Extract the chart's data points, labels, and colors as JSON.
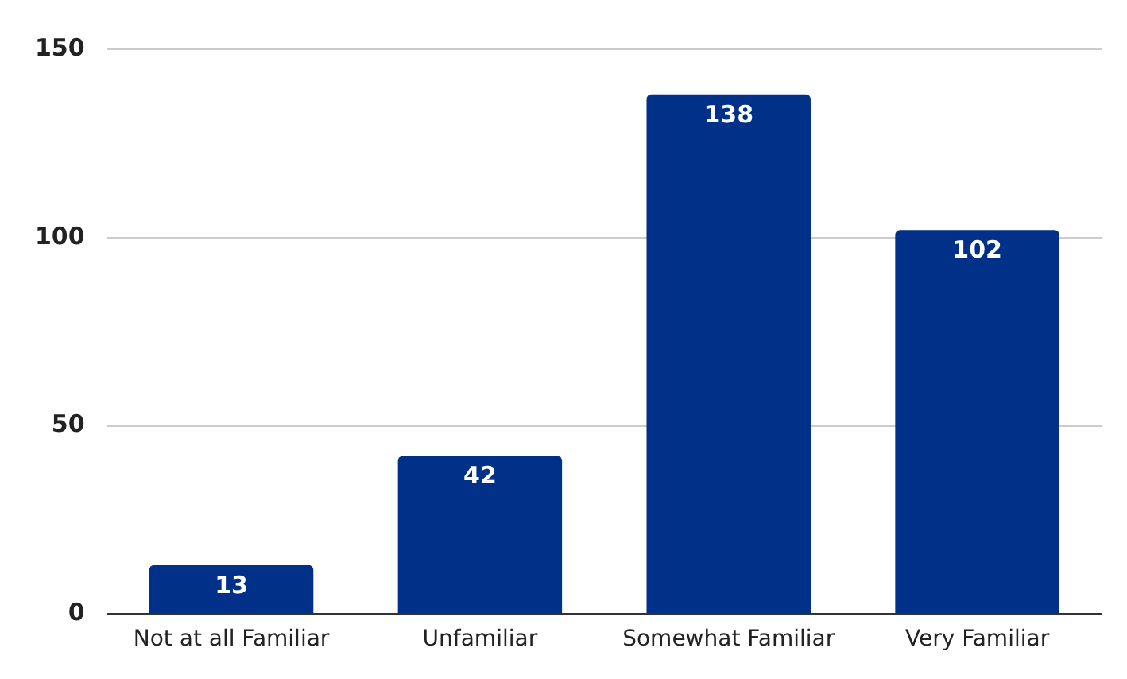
{
  "chart_data": {
    "type": "bar",
    "categories": [
      "Not at all Familiar",
      "Unfamiliar",
      "Somewhat Familiar",
      "Very Familiar"
    ],
    "values": [
      13,
      42,
      138,
      102
    ],
    "color": "#003087",
    "ylim": [
      0,
      150
    ],
    "yticks": [
      0,
      50,
      100,
      150
    ],
    "grid": "y",
    "data_labels": true
  }
}
